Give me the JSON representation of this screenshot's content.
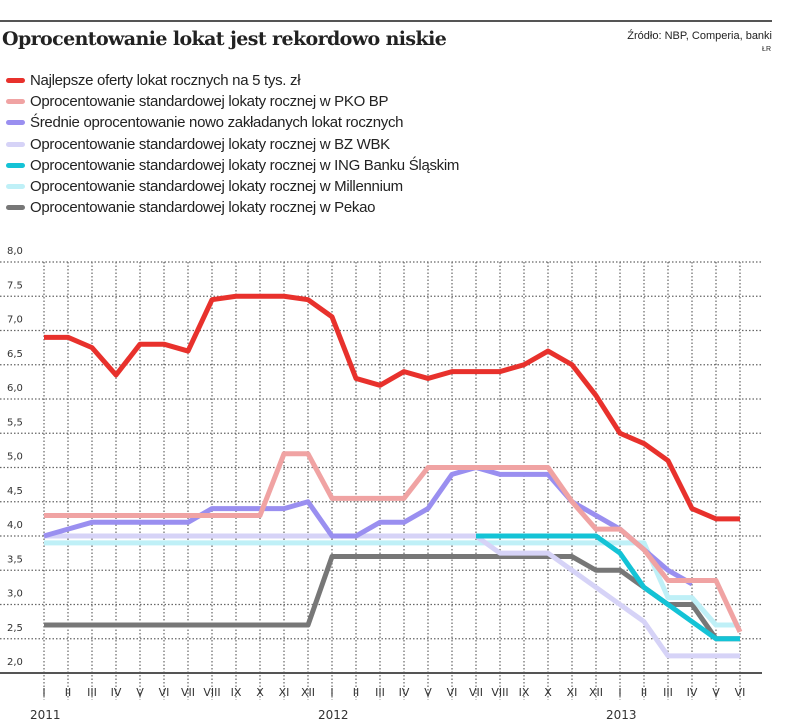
{
  "header": {
    "title": "Oprocentowanie lokat jest rekordowo niskie",
    "source": "Źródło: NBP, Comperia, banki",
    "author": "ŁR"
  },
  "chart_data": {
    "type": "line",
    "title": "Oprocentowanie lokat jest rekordowo niskie",
    "xlabel": "",
    "ylabel": "",
    "ylim": [
      2.0,
      8.0
    ],
    "yticks": [
      "2,0",
      "2,5",
      "3,0",
      "3,5",
      "4,0",
      "4,5",
      "5,0",
      "5,5",
      "6,0",
      "6,5",
      "7,0",
      "7.5",
      "8,0"
    ],
    "ytick_values": [
      2.0,
      2.5,
      3.0,
      3.5,
      4.0,
      4.5,
      5.0,
      5.5,
      6.0,
      6.5,
      7.0,
      7.5,
      8.0
    ],
    "categories": [
      "I",
      "II",
      "III",
      "IV",
      "V",
      "VI",
      "VII",
      "VIII",
      "IX",
      "X",
      "XI",
      "XII",
      "I",
      "II",
      "III",
      "IV",
      "V",
      "VI",
      "VII",
      "VIII",
      "IX",
      "X",
      "XI",
      "XII",
      "I",
      "II",
      "III",
      "IV",
      "V",
      "VI"
    ],
    "years": [
      {
        "label": "2011",
        "index": 0
      },
      {
        "label": "2012",
        "index": 12
      },
      {
        "label": "2013",
        "index": 24
      }
    ],
    "grid": true,
    "legend_position": "top-left",
    "series": [
      {
        "name": "Najlepsze oferty lokat rocznych na 5 tys. zł",
        "color": "#e8312c",
        "values": [
          6.9,
          6.9,
          6.75,
          6.35,
          6.8,
          6.8,
          6.7,
          7.45,
          7.5,
          7.5,
          7.5,
          7.45,
          7.2,
          6.3,
          6.2,
          6.4,
          6.3,
          6.4,
          6.4,
          6.4,
          6.5,
          6.7,
          6.5,
          6.05,
          5.5,
          5.35,
          5.1,
          4.4,
          4.25,
          4.25
        ]
      },
      {
        "name": "Oprocentowanie standardowej lokaty rocznej w PKO BP",
        "color": "#f0a3a3",
        "values": [
          4.3,
          4.3,
          4.3,
          4.3,
          4.3,
          4.3,
          4.3,
          4.3,
          4.3,
          4.3,
          5.2,
          5.2,
          4.55,
          4.55,
          4.55,
          4.55,
          5.0,
          5.0,
          5.0,
          5.0,
          5.0,
          5.0,
          4.5,
          4.1,
          4.1,
          3.8,
          3.35,
          3.35,
          3.35,
          2.6
        ]
      },
      {
        "name": "Średnie oprocentowanie nowo zakładanych lokat rocznych",
        "color": "#9a8ff0",
        "values": [
          4.0,
          4.1,
          4.2,
          4.2,
          4.2,
          4.2,
          4.2,
          4.4,
          4.4,
          4.4,
          4.4,
          4.5,
          4.0,
          4.0,
          4.2,
          4.2,
          4.4,
          4.9,
          5.0,
          4.9,
          4.9,
          4.9,
          4.5,
          4.3,
          4.1,
          3.8,
          3.5,
          3.3,
          null,
          null
        ]
      },
      {
        "name": "Oprocentowanie standardowej lokaty rocznej w BZ WBK",
        "color": "#d6d3f7",
        "values": [
          4.0,
          4.0,
          4.0,
          4.0,
          4.0,
          4.0,
          4.0,
          4.0,
          4.0,
          4.0,
          4.0,
          4.0,
          4.0,
          4.0,
          4.0,
          4.0,
          4.0,
          4.0,
          4.0,
          3.75,
          3.75,
          3.75,
          3.5,
          3.25,
          3.0,
          2.75,
          2.25,
          2.25,
          2.25,
          2.25
        ]
      },
      {
        "name": "Oprocentowanie standardowej lokaty rocznej w ING Banku Śląskim",
        "color": "#14c3d6",
        "values": [
          null,
          null,
          null,
          null,
          null,
          null,
          null,
          null,
          null,
          null,
          null,
          null,
          null,
          null,
          null,
          null,
          null,
          null,
          4.0,
          4.0,
          4.0,
          4.0,
          4.0,
          4.0,
          3.75,
          3.25,
          3.0,
          2.75,
          2.5,
          2.5
        ]
      },
      {
        "name": "Oprocentowanie standardowej lokaty rocznej w Millennium",
        "color": "#bff0f7",
        "values": [
          3.9,
          3.9,
          3.9,
          3.9,
          3.9,
          3.9,
          3.9,
          3.9,
          3.9,
          3.9,
          3.9,
          3.9,
          3.9,
          3.9,
          3.9,
          3.9,
          3.9,
          3.9,
          3.9,
          3.9,
          3.9,
          3.9,
          3.9,
          3.9,
          3.9,
          3.9,
          3.1,
          3.1,
          2.7,
          2.7
        ]
      },
      {
        "name": "Oprocentowanie standardowej lokaty rocznej w Pekao",
        "color": "#777777",
        "values": [
          2.7,
          2.7,
          2.7,
          2.7,
          2.7,
          2.7,
          2.7,
          2.7,
          2.7,
          2.7,
          2.7,
          2.7,
          3.7,
          3.7,
          3.7,
          3.7,
          3.7,
          3.7,
          3.7,
          3.7,
          3.7,
          3.7,
          3.7,
          3.5,
          3.5,
          3.25,
          3.0,
          3.0,
          2.5,
          2.5
        ]
      }
    ]
  }
}
